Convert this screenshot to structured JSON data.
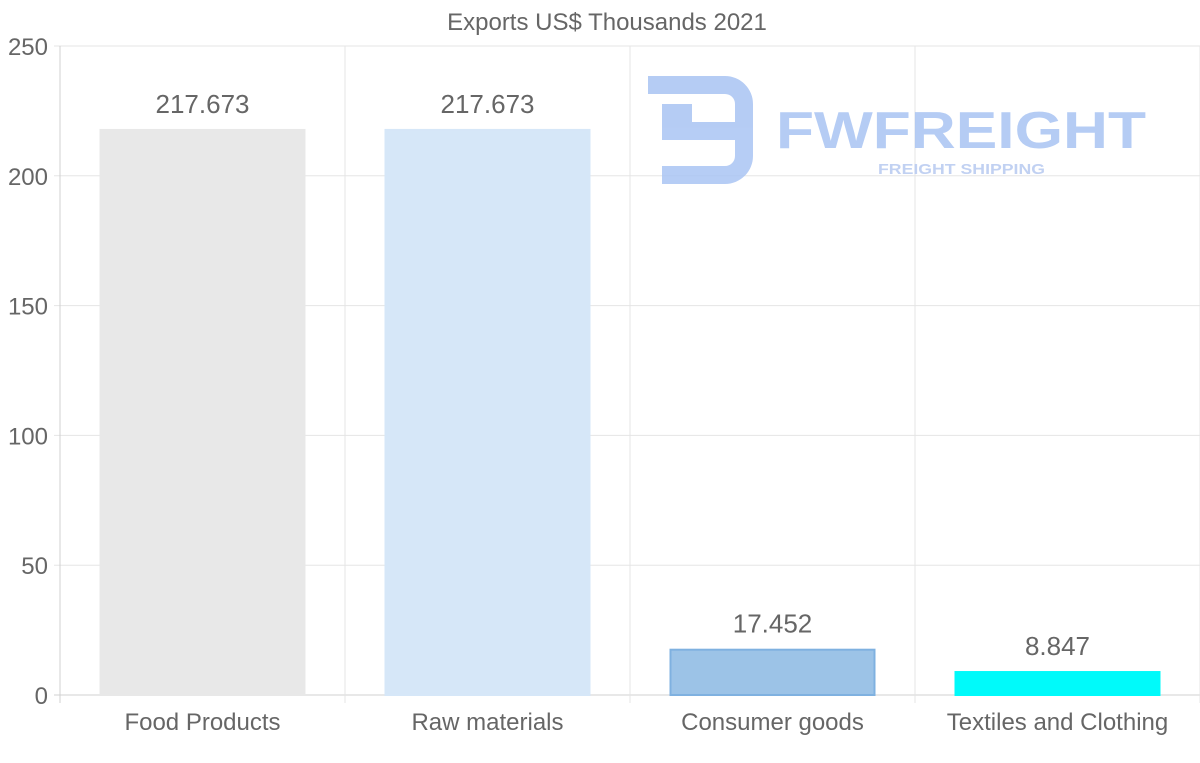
{
  "chart_data": {
    "type": "bar",
    "title": "Exports US$ Thousands 2021",
    "categories": [
      "Food Products",
      "Raw materials",
      "Consumer goods",
      "Textiles and Clothing"
    ],
    "values": [
      217.673,
      217.673,
      17.452,
      8.847
    ],
    "value_labels": [
      "217.673",
      "217.673",
      "17.452",
      "8.847"
    ],
    "colors": [
      "#e8e8e8",
      "#d6e7f8",
      "#9cc3e7",
      "#00fafa"
    ],
    "border_colors": [
      "#e8e8e8",
      "#d6e7f8",
      "#7fb1e0",
      "#00fafa"
    ],
    "ylim": [
      0,
      250
    ],
    "yticks": [
      0,
      50,
      100,
      150,
      200,
      250
    ],
    "xlabel": "",
    "ylabel": "",
    "grid": true,
    "legend": "none"
  },
  "watermark": {
    "brand": "FWFREIGHT",
    "tagline": "FREIGHT SHIPPING",
    "color": "#a9c4f3",
    "tagline_color": "#b7c9f0"
  }
}
